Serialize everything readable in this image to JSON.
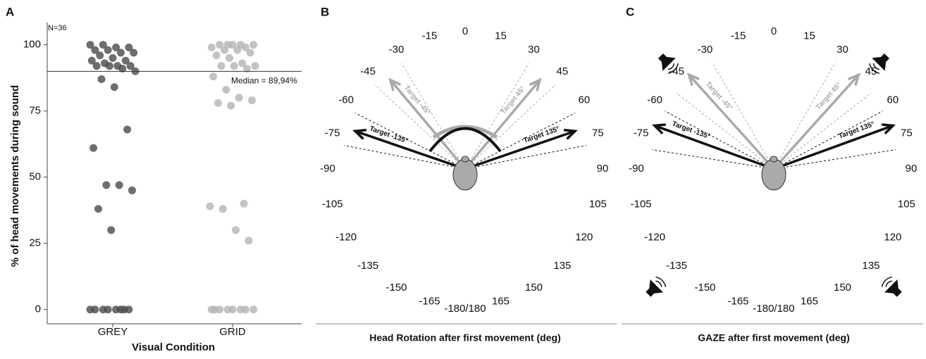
{
  "chart_data": {
    "type": "strip",
    "panel": "A",
    "annotation": "N=36",
    "ylabel": "% of head movements during sound",
    "xlabel": "Visual Condition",
    "categories": [
      "GREY",
      "GRID"
    ],
    "series": [
      {
        "name": "GREY",
        "color": "#4a4a4a",
        "values": [
          100,
          100,
          99,
          99,
          98,
          98,
          97,
          97,
          96,
          95,
          94,
          94,
          93,
          92,
          92,
          92,
          92,
          91,
          90,
          87,
          84,
          68,
          61,
          47,
          47,
          45,
          38,
          30,
          0,
          0,
          0,
          0,
          0,
          0,
          0,
          0
        ]
      },
      {
        "name": "GRID",
        "color": "#b4b4b4",
        "values": [
          100,
          100,
          100,
          100,
          100,
          99,
          99,
          98,
          98,
          97,
          96,
          95,
          93,
          92,
          92,
          92,
          91,
          88,
          83,
          80,
          79,
          78,
          77,
          40,
          39,
          38,
          30,
          26,
          0,
          0,
          0,
          0,
          0,
          0,
          0,
          0
        ]
      }
    ],
    "reference_line": {
      "value": 89.94,
      "label": "Median = 89,94%"
    },
    "ylim": [
      -5.4,
      108.4
    ],
    "yticks": [
      0,
      25,
      50,
      75,
      100
    ]
  },
  "diagrams": [
    {
      "panel": "B",
      "title": "Head Rotation after first movement (deg)",
      "angles": [
        0,
        15,
        30,
        45,
        60,
        75,
        90,
        105,
        120,
        135,
        150,
        165,
        -15,
        -30,
        -45,
        -60,
        -75,
        -90,
        -105,
        -120,
        -135,
        -150,
        -165
      ],
      "back_label": "-180/180",
      "arrows": [
        {
          "label": "Target 45°",
          "direction": 40,
          "range": [
            31,
            47
          ],
          "color": "#aaaaaa"
        },
        {
          "label": "Target -45°",
          "direction": -40,
          "range": [
            -31,
            -47
          ],
          "color": "#aaaaaa"
        },
        {
          "label": "Target 135°",
          "direction": 71,
          "range": [
            63,
            79
          ],
          "color": "#111111"
        },
        {
          "label": "Target -135°",
          "direction": -71,
          "range": [
            -63,
            -79
          ],
          "color": "#111111"
        }
      ]
    },
    {
      "panel": "C",
      "title": "GAZE after first movement (deg)",
      "angles": [
        0,
        15,
        30,
        45,
        60,
        75,
        90,
        105,
        120,
        135,
        150,
        165,
        -15,
        -30,
        -45,
        -60,
        -75,
        -90,
        -105,
        -120,
        -135,
        -150,
        -165
      ],
      "back_label": "-180/180",
      "arrows": [
        {
          "label": "Target 45°",
          "direction": 42,
          "range": [
            30,
            52
          ],
          "color": "#aaaaaa"
        },
        {
          "label": "Target -45°",
          "direction": -42,
          "range": [
            -30,
            -52
          ],
          "color": "#aaaaaa"
        },
        {
          "label": "Target 135°",
          "direction": 70,
          "range": [
            62,
            81
          ],
          "color": "#111111"
        },
        {
          "label": "Target -135°",
          "direction": -70,
          "range": [
            -62,
            -81
          ],
          "color": "#111111"
        }
      ]
    }
  ]
}
